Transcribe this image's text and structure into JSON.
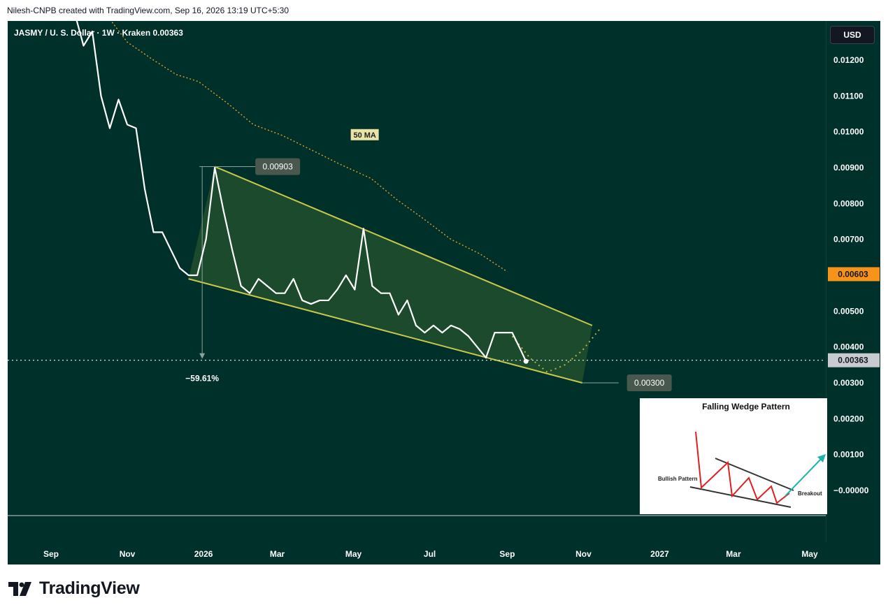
{
  "header": {
    "text": "Nilesh-CNPB created with TradingView.com, Sep 16, 2026 13:19 UTC+5:30"
  },
  "chart": {
    "symbol_line": "JASMY / U. S. Dollar · 1W · Kraken  0.00363",
    "currency": "USD",
    "annotations": {
      "ma_label": "50 MA",
      "peak_label": "0.00903",
      "target_label": "0.00300",
      "change_label": "−59.61%",
      "current_badge": "0.00363",
      "ma_badge": "0.00603"
    },
    "colors": {
      "background": "#00302a",
      "price_line": "#ffffff",
      "wedge": "#c9c84a",
      "ma": "#e0a12a",
      "ma_badge": "#f7931a",
      "current_badge": "#c8ccce"
    }
  },
  "inset": {
    "title": "Falling Wedge Pattern",
    "left_label": "Bullish Pattern",
    "right_label": "Breakout"
  },
  "branding": {
    "name": "TradingView"
  },
  "chart_data": {
    "type": "line",
    "title": "",
    "xlabel": "",
    "ylabel": "",
    "ylim": [
      -0.0003,
      0.0129
    ],
    "y_ticks": [
      "0.01200",
      "0.01100",
      "0.01000",
      "0.00900",
      "0.00800",
      "0.00700",
      "0.00600",
      "0.00500",
      "0.00400",
      "0.00300",
      "0.00200",
      "0.00100",
      "−0.00000"
    ],
    "y_tick_values": [
      0.012,
      0.011,
      0.01,
      0.009,
      0.008,
      0.007,
      0.006,
      0.005,
      0.004,
      0.003,
      0.002,
      0.001,
      0.0
    ],
    "x_ticks": [
      {
        "label": "Sep",
        "date": "2025-09-01"
      },
      {
        "label": "Nov",
        "date": "2025-11-01"
      },
      {
        "label": "2026",
        "date": "2026-01-01"
      },
      {
        "label": "Mar",
        "date": "2026-03-01"
      },
      {
        "label": "May",
        "date": "2026-05-01"
      },
      {
        "label": "Jul",
        "date": "2026-07-01"
      },
      {
        "label": "Sep",
        "date": "2026-09-01"
      },
      {
        "label": "Nov",
        "date": "2026-11-01"
      },
      {
        "label": "2027",
        "date": "2027-01-01"
      },
      {
        "label": "Mar",
        "date": "2027-03-01"
      },
      {
        "label": "May",
        "date": "2027-05-01"
      }
    ],
    "series": [
      {
        "name": "JASMY / U. S. Dollar",
        "points": [
          [
            "2025-09-20",
            0.0133
          ],
          [
            "2025-09-27",
            0.0124
          ],
          [
            "2025-10-04",
            0.0128
          ],
          [
            "2025-10-11",
            0.011
          ],
          [
            "2025-10-18",
            0.0101
          ],
          [
            "2025-10-25",
            0.0109
          ],
          [
            "2025-11-01",
            0.0102
          ],
          [
            "2025-11-08",
            0.0101
          ],
          [
            "2025-11-15",
            0.0084
          ],
          [
            "2025-11-22",
            0.0072
          ],
          [
            "2025-11-29",
            0.0072
          ],
          [
            "2025-12-06",
            0.0067
          ],
          [
            "2025-12-13",
            0.0062
          ],
          [
            "2025-12-20",
            0.006
          ],
          [
            "2025-12-27",
            0.006
          ],
          [
            "2026-01-03",
            0.007
          ],
          [
            "2026-01-10",
            0.009
          ],
          [
            "2026-01-17",
            0.0078
          ],
          [
            "2026-01-24",
            0.0067
          ],
          [
            "2026-01-31",
            0.0057
          ],
          [
            "2026-02-07",
            0.0055
          ],
          [
            "2026-02-14",
            0.0059
          ],
          [
            "2026-02-21",
            0.0057
          ],
          [
            "2026-02-28",
            0.0055
          ],
          [
            "2026-03-07",
            0.0055
          ],
          [
            "2026-03-14",
            0.0059
          ],
          [
            "2026-03-21",
            0.0053
          ],
          [
            "2026-03-28",
            0.0052
          ],
          [
            "2026-04-04",
            0.0053
          ],
          [
            "2026-04-11",
            0.0053
          ],
          [
            "2026-04-18",
            0.0056
          ],
          [
            "2026-04-25",
            0.006
          ],
          [
            "2026-05-02",
            0.0056
          ],
          [
            "2026-05-09",
            0.0073
          ],
          [
            "2026-05-16",
            0.0057
          ],
          [
            "2026-05-23",
            0.0055
          ],
          [
            "2026-05-30",
            0.0055
          ],
          [
            "2026-06-06",
            0.0049
          ],
          [
            "2026-06-13",
            0.0053
          ],
          [
            "2026-06-20",
            0.0046
          ],
          [
            "2026-06-27",
            0.0044
          ],
          [
            "2026-07-04",
            0.0046
          ],
          [
            "2026-07-11",
            0.0044
          ],
          [
            "2026-07-18",
            0.0046
          ],
          [
            "2026-07-25",
            0.0045
          ],
          [
            "2026-08-01",
            0.0043
          ],
          [
            "2026-08-08",
            0.004
          ],
          [
            "2026-08-15",
            0.0037
          ],
          [
            "2026-08-22",
            0.0044
          ],
          [
            "2026-08-29",
            0.0044
          ],
          [
            "2026-09-05",
            0.0044
          ],
          [
            "2026-09-12",
            0.0039
          ],
          [
            "2026-09-16",
            0.0036
          ]
        ]
      },
      {
        "name": "50 MA",
        "points": [
          [
            "2025-10-08",
            0.0136
          ],
          [
            "2025-11-01",
            0.0125
          ],
          [
            "2025-11-22",
            0.012
          ],
          [
            "2025-12-10",
            0.0116
          ],
          [
            "2025-12-28",
            0.0114
          ],
          [
            "2026-01-20",
            0.0108
          ],
          [
            "2026-02-10",
            0.0102
          ],
          [
            "2026-03-05",
            0.0099
          ],
          [
            "2026-03-28",
            0.0095
          ],
          [
            "2026-04-20",
            0.0091
          ],
          [
            "2026-05-15",
            0.0087
          ],
          [
            "2026-06-05",
            0.0081
          ],
          [
            "2026-06-25",
            0.0076
          ],
          [
            "2026-07-18",
            0.007
          ],
          [
            "2026-08-10",
            0.0066
          ],
          [
            "2026-09-01",
            0.0061
          ]
        ]
      }
    ],
    "wedge": {
      "upper": [
        [
          "2026-01-10",
          0.00903
        ],
        [
          "2026-11-08",
          0.0046
        ]
      ],
      "lower": [
        [
          "2025-12-20",
          0.0059
        ],
        [
          "2026-10-31",
          0.003
        ]
      ]
    },
    "projection": [
      [
        "2026-09-05",
        0.0043
      ],
      [
        "2026-09-19",
        0.0037
      ],
      [
        "2026-10-03",
        0.0033
      ],
      [
        "2026-10-17",
        0.0035
      ],
      [
        "2026-10-31",
        0.0039
      ],
      [
        "2026-11-14",
        0.0045
      ]
    ],
    "measure": {
      "from": [
        "2026-01-10",
        0.00903
      ],
      "to": 0.00363,
      "change_pct": -59.61
    },
    "current_price": 0.00363,
    "ma_value": 0.00603,
    "target_value": 0.003,
    "grid": false,
    "legend": "none"
  }
}
